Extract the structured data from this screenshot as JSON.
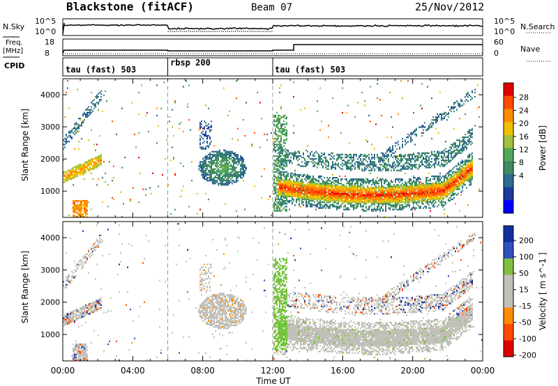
{
  "header": {
    "radar": "Blackstone (fitACF)",
    "beam": "Beam 07",
    "date": "25/Nov/2012"
  },
  "strip_labels": {
    "nsky": "N.Sky",
    "nsearch": "N.Search",
    "freq": "Freq.",
    "freq_unit": "[MHz]",
    "nave": "Nave",
    "cpid": "CPID",
    "noise_top": "10^5",
    "noise_bottom": "10^0",
    "freq_top": "18",
    "freq_bottom": "8",
    "nave_top": "60",
    "nave_bottom": "0"
  },
  "cpid_segments": [
    {
      "label": "tau (fast) 503",
      "start_hour": 0,
      "end_hour": 6
    },
    {
      "label": "rbsp 200",
      "start_hour": 6,
      "end_hour": 12
    },
    {
      "label": "tau (fast) 503",
      "start_hour": 12,
      "end_hour": 24
    }
  ],
  "chart_data": [
    {
      "type": "heatmap",
      "panel": "power",
      "ylabel": "Slant Range [km]",
      "xlabel": "Time UT",
      "xlim": [
        0,
        24
      ],
      "ylim": [
        180,
        4500
      ],
      "x_ticks": [
        "00:00",
        "04:00",
        "08:00",
        "12:00",
        "16:00",
        "20:00",
        "00:00"
      ],
      "y_ticks": [
        1000,
        2000,
        3000,
        4000
      ],
      "colorbar": {
        "label": "Power [dB]",
        "ticks": [
          "4",
          "8",
          "12",
          "16",
          "20",
          "24",
          "28"
        ],
        "range": [
          0,
          30
        ],
        "colors": [
          "#0000ff",
          "#1c3aa0",
          "#2e6b8e",
          "#3d8b5e",
          "#52a85a",
          "#9fc13c",
          "#f0c000",
          "#ff8c00",
          "#ff4a00",
          "#e00000"
        ]
      },
      "features": [
        {
          "hours": [
            0.0,
            2.2
          ],
          "range_km": [
            1300,
            1800
          ],
          "power_db": 22
        },
        {
          "hours": [
            7.5,
            10.5
          ],
          "range_km": [
            1400,
            2300
          ],
          "power_db": 14
        },
        {
          "hours": [
            12.2,
            23.5
          ],
          "range_km": [
            700,
            1500
          ],
          "power_db": 26
        }
      ]
    },
    {
      "type": "heatmap",
      "panel": "velocity",
      "ylabel": "Slant Range [km]",
      "xlabel": "Time UT",
      "xlim": [
        0,
        24
      ],
      "ylim": [
        180,
        4500
      ],
      "x_ticks": [
        "00:00",
        "04:00",
        "08:00",
        "12:00",
        "16:00",
        "20:00",
        "00:00"
      ],
      "y_ticks": [
        1000,
        2000,
        3000,
        4000
      ],
      "colorbar": {
        "label": "Velocity [ m s^-1 ]",
        "ticks": [
          "200",
          "100",
          "50",
          "15",
          "-15",
          "-50",
          "-100",
          "-200"
        ],
        "range": [
          -250,
          250
        ],
        "colors": [
          "#e00000",
          "#ff4a00",
          "#ff8c00",
          "#f0a000",
          "#c0c0b8",
          "#c0c0b8",
          "#4cc83c",
          "#80c040",
          "#3050c0",
          "#1030a0"
        ]
      },
      "features": [
        {
          "hours": [
            12.2,
            23.5
          ],
          "range_km": [
            700,
            1500
          ],
          "velocity_ms": 0
        },
        {
          "hours": [
            12.0,
            13.2
          ],
          "range_km": [
            700,
            3400
          ],
          "velocity_ms": 60
        }
      ]
    }
  ]
}
